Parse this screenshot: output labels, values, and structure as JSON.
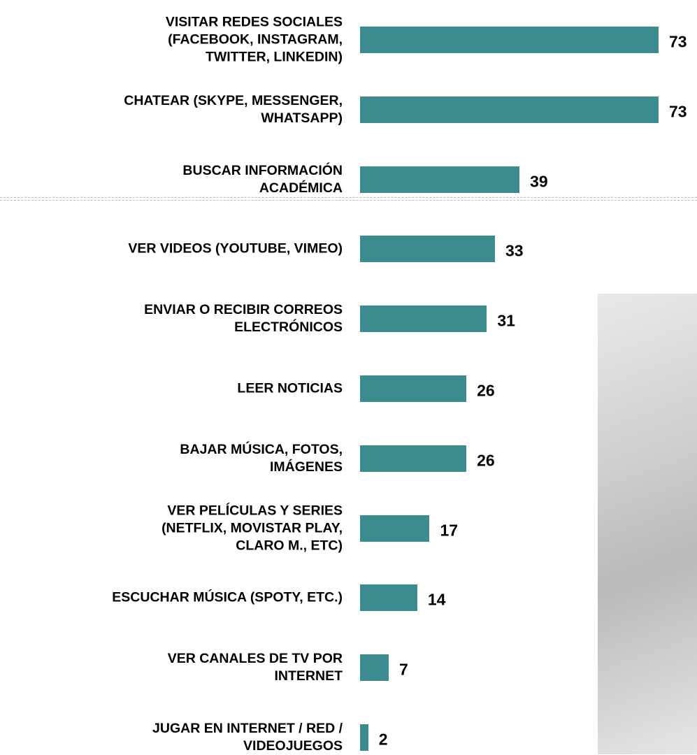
{
  "chart_data": {
    "type": "bar",
    "orientation": "horizontal",
    "categories": [
      "VISITAR REDES SOCIALES\n(FACEBOOK, INSTAGRAM,\nTWITTER, LINKEDIN)",
      "CHATEAR (SKYPE, MESSENGER,\nWHATSAPP)",
      "BUSCAR INFORMACIÓN\nACADÉMICA",
      "VER VIDEOS (YOUTUBE, VIMEO)",
      "ENVIAR O RECIBIR CORREOS\nELECTRÓNICOS",
      "LEER NOTICIAS",
      "BAJAR MÚSICA, FOTOS,\nIMÁGENES",
      "VER PELÍCULAS Y SERIES\n(NETFLIX, MOVISTAR PLAY,\nCLARO M., ETC)",
      "ESCUCHAR MÚSICA (SPOTY, ETC.)",
      "VER CANALES DE TV POR\nINTERNET",
      "JUGAR EN INTERNET / RED /\nVIDEOJUEGOS"
    ],
    "values": [
      73,
      73,
      39,
      33,
      31,
      26,
      26,
      17,
      14,
      7,
      2
    ],
    "color": "#3b8b8f"
  }
}
